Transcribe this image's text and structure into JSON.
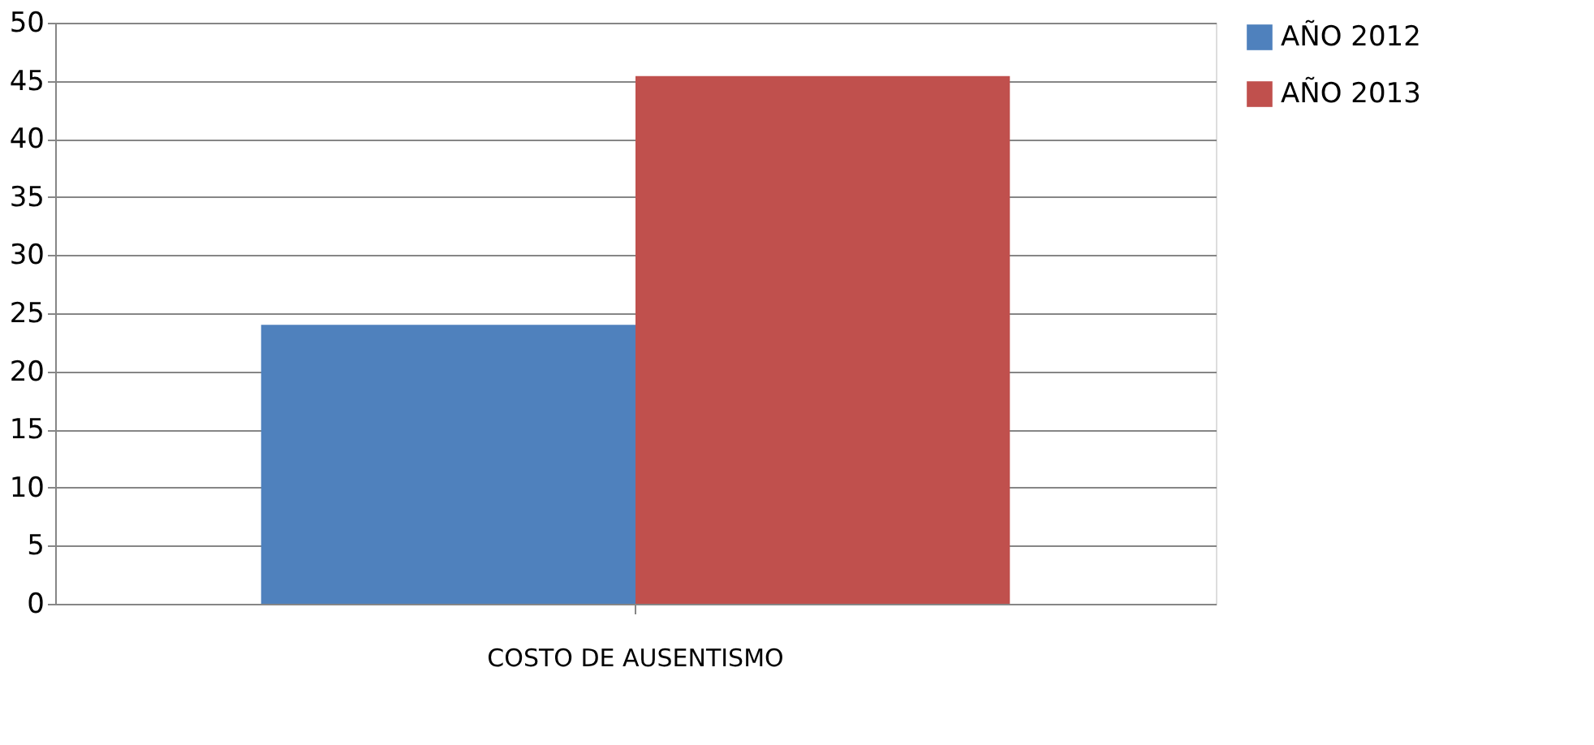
{
  "chart_data": {
    "type": "bar",
    "categories": [
      "COSTO DE AUSENTISMO"
    ],
    "series": [
      {
        "name": "AÑO 2012",
        "color": "#4f81bd",
        "values": [
          24.0
        ]
      },
      {
        "name": "AÑO 2013",
        "color": "#c0504d",
        "values": [
          45.4
        ]
      }
    ],
    "ylim": [
      0,
      50
    ],
    "yticks": [
      0,
      5,
      10,
      15,
      20,
      25,
      30,
      35,
      40,
      45,
      50
    ],
    "grid": "y",
    "legend": "right"
  }
}
